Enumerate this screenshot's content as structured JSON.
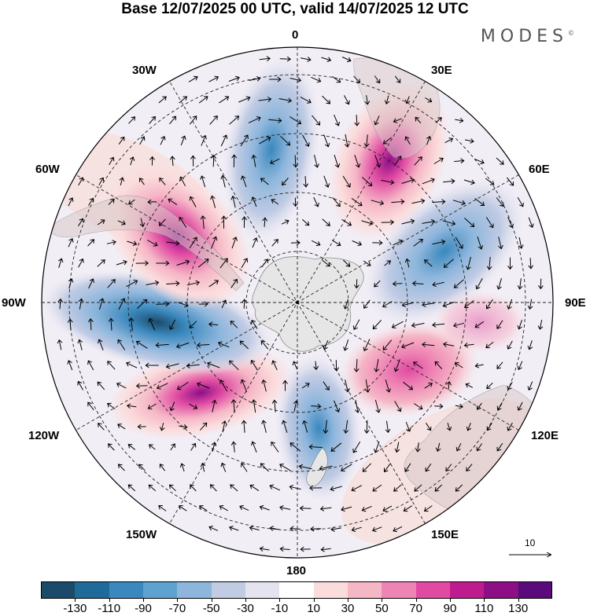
{
  "title": "Base 12/07/2025 00 UTC, valid 14/07/2025 12 UTC",
  "brand": "MODES",
  "brand_mark": "©",
  "longitude_labels": [
    "0",
    "30E",
    "60E",
    "90E",
    "120E",
    "150E",
    "180",
    "150W",
    "120W",
    "90W",
    "60W",
    "30W"
  ],
  "wind_scale_label": "10",
  "colorbar": {
    "colors": [
      "#1b4a6b",
      "#1f6a98",
      "#3a88bd",
      "#5ea3cf",
      "#8eb6dc",
      "#c0cbe4",
      "#e4e4f0",
      "#ffffff",
      "#fbdcdc",
      "#f5b6c6",
      "#ee84b4",
      "#e04aa2",
      "#be1c8e",
      "#8c0f86",
      "#5a0a7a"
    ],
    "tick_labels": [
      "-130",
      "-110",
      "-90",
      "-70",
      "-50",
      "-30",
      "-10",
      "10",
      "30",
      "50",
      "70",
      "90",
      "110",
      "130"
    ]
  },
  "anomaly_lobes": [
    {
      "sign": "negative",
      "peak": -90,
      "direction_deg": 0,
      "distance": 0.58
    },
    {
      "sign": "positive",
      "peak": 90,
      "direction_deg": 32,
      "distance": 0.68
    },
    {
      "sign": "negative",
      "peak": -90,
      "direction_deg": 70,
      "distance": 0.55
    },
    {
      "sign": "positive",
      "peak": 70,
      "direction_deg": 118,
      "distance": 0.48
    },
    {
      "sign": "negative",
      "peak": -70,
      "direction_deg": 170,
      "distance": 0.42
    },
    {
      "sign": "positive",
      "peak": 110,
      "direction_deg": 232,
      "distance": 0.45
    },
    {
      "sign": "negative",
      "peak": -130,
      "direction_deg": 262,
      "distance": 0.52
    },
    {
      "sign": "positive",
      "peak": 110,
      "direction_deg": 300,
      "distance": 0.55
    }
  ]
}
